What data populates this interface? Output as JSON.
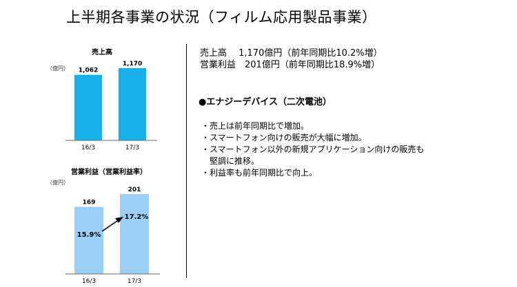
{
  "title": "上半期各事業の状況（フィルム応用製品事業）",
  "summary": [
    "売上高　 1,170億円（前年同期比10.2%増）",
    "営業利益　201億円（前年同期比18.9%増）"
  ],
  "segment_title": "●エナジーデバイス（二次電池）",
  "bullets": [
    "売上は前年同期比で増加。",
    "スマートフォン向けの販売が大幅に増加。",
    "スマートフォン以外の新規アプリケーション向けの販売も\n堅調に推移。",
    "利益率も前年同期比で向上。"
  ],
  "colors": {
    "sales_bar": "#17b0ec",
    "profit_bar": "#9ccff6",
    "axis": "#666666",
    "arrow": "#000000"
  },
  "chart_data": [
    {
      "type": "bar",
      "title": "売上高",
      "unit": "（億円）",
      "categories": [
        "16/3",
        "17/3"
      ],
      "values": [
        1062,
        1170
      ],
      "value_labels": [
        "1,062",
        "1,170"
      ]
    },
    {
      "type": "bar",
      "title": "営業利益（営業利益率）",
      "unit": "（億円）",
      "categories": [
        "16/3",
        "17/3"
      ],
      "values": [
        169,
        201
      ],
      "value_labels": [
        "169",
        "201"
      ],
      "margins": [
        "15.9%",
        "17.2%"
      ]
    }
  ]
}
